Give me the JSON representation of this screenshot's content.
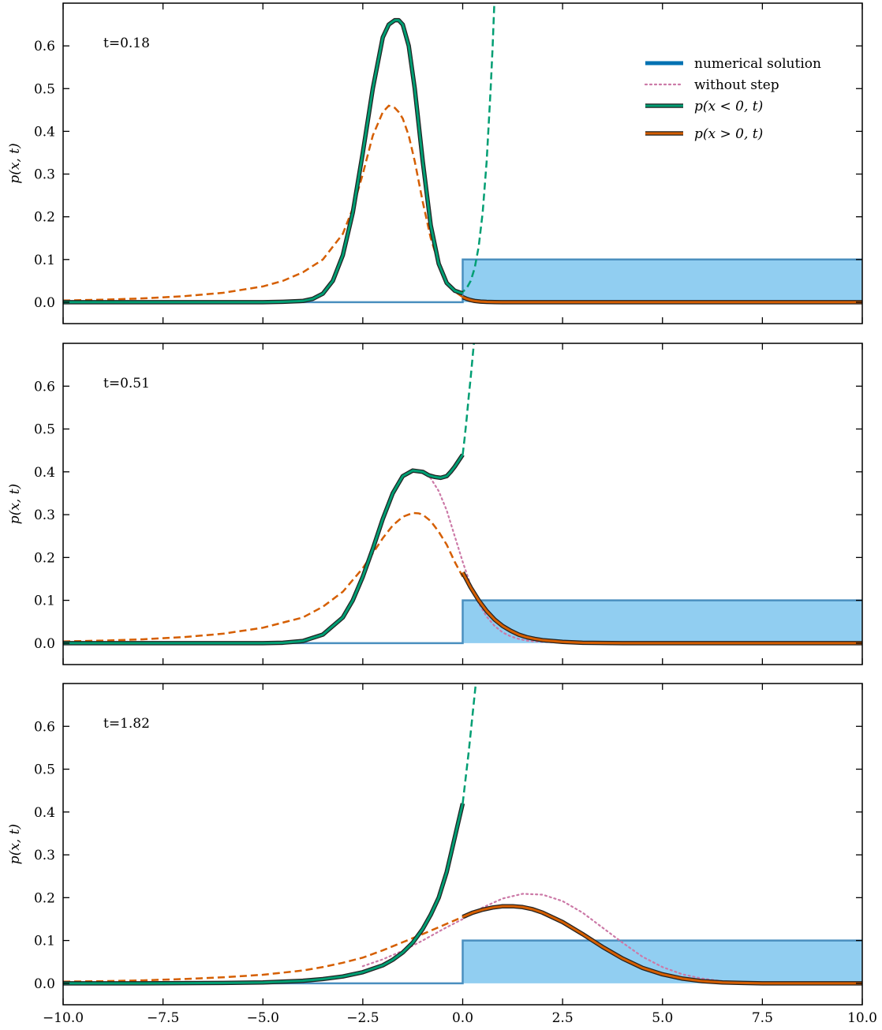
{
  "chart_data": {
    "type": "line",
    "x_range": [
      -10,
      10
    ],
    "y_range": [
      -0.05,
      0.7
    ],
    "x_ticks": [
      -10,
      -7.5,
      -5,
      -2.5,
      0,
      2.5,
      5,
      7.5,
      10
    ],
    "x_tick_labels": [
      "−10.0",
      "−7.5",
      "−5.0",
      "−2.5",
      "0.0",
      "2.5",
      "5.0",
      "7.5",
      "10.0"
    ],
    "y_ticks": [
      0.0,
      0.1,
      0.2,
      0.3,
      0.4,
      0.5,
      0.6
    ],
    "y_tick_labels": [
      "0.0",
      "0.1",
      "0.2",
      "0.3",
      "0.4",
      "0.5",
      "0.6"
    ],
    "ylabel": "p(x, t)",
    "grid": false,
    "legend": {
      "location": "top-right",
      "entries": [
        {
          "label": "numerical solution",
          "color": "#0072B2",
          "style": "solid-thick"
        },
        {
          "label": "without step",
          "color": "#CC79A7",
          "style": "dotted"
        },
        {
          "label": "p(x < 0, t)",
          "color": "#009E73",
          "style": "solid-outlined"
        },
        {
          "label": "p(x > 0, t)",
          "color": "#D55E00",
          "style": "solid-outlined"
        }
      ]
    },
    "colors": {
      "numerical": "#0072B2",
      "without_step": "#CC79A7",
      "p_left": "#009E73",
      "p_right": "#D55E00",
      "step_fill": "#56B4E9",
      "step_edge": "#4a8fbf"
    },
    "step_potential": {
      "x_start": 0,
      "x_end": 10,
      "height": 0.1
    },
    "panels": [
      {
        "annotation": "t=0.18",
        "series": [
          {
            "id": "p_left_solid",
            "x": [
              -10,
              -8,
              -6,
              -5,
              -4.5,
              -4,
              -3.75,
              -3.5,
              -3.25,
              -3,
              -2.75,
              -2.5,
              -2.25,
              -2,
              -1.85,
              -1.7,
              -1.6,
              -1.5,
              -1.35,
              -1.2,
              -1,
              -0.8,
              -0.6,
              -0.4,
              -0.2,
              -0.05,
              0
            ],
            "y": [
              0,
              0,
              0,
              0,
              0.001,
              0.003,
              0.008,
              0.02,
              0.05,
              0.11,
              0.21,
              0.35,
              0.5,
              0.62,
              0.65,
              0.66,
              0.66,
              0.65,
              0.6,
              0.5,
              0.33,
              0.18,
              0.09,
              0.045,
              0.027,
              0.022,
              0.021
            ]
          },
          {
            "id": "p_left_analytic",
            "x": [
              -0.1,
              0,
              0.1,
              0.2,
              0.3,
              0.4,
              0.5,
              0.6,
              0.7,
              0.75,
              0.8
            ],
            "y": [
              0.021,
              0.024,
              0.033,
              0.05,
              0.08,
              0.13,
              0.21,
              0.33,
              0.5,
              0.6,
              0.72
            ]
          },
          {
            "id": "p_right_dashed",
            "x": [
              -10,
              -9,
              -8,
              -7,
              -6,
              -5,
              -4.5,
              -4,
              -3.5,
              -3,
              -2.75,
              -2.5,
              -2.25,
              -2,
              -1.85,
              -1.7,
              -1.6,
              -1.5,
              -1.35,
              -1.2,
              -1,
              -0.8,
              -0.6,
              -0.4,
              -0.2,
              0
            ],
            "y": [
              0.004,
              0.006,
              0.009,
              0.014,
              0.022,
              0.037,
              0.05,
              0.07,
              0.1,
              0.16,
              0.22,
              0.3,
              0.39,
              0.445,
              0.46,
              0.455,
              0.445,
              0.43,
              0.39,
              0.33,
              0.235,
              0.15,
              0.09,
              0.05,
              0.025,
              0.012
            ]
          },
          {
            "id": "p_right_solid",
            "x": [
              0,
              0.1,
              0.2,
              0.3,
              0.45,
              0.6,
              0.8,
              1,
              1.5,
              2,
              3,
              5,
              7.5,
              10
            ],
            "y": [
              0.012,
              0.008,
              0.005,
              0.003,
              0.0015,
              0.0008,
              0.0003,
              0.0001,
              0,
              0,
              0,
              0,
              0,
              0
            ]
          }
        ]
      },
      {
        "annotation": "t=0.51",
        "series": [
          {
            "id": "p_left_solid",
            "x": [
              -10,
              -8,
              -6,
              -5,
              -4.5,
              -4,
              -3.5,
              -3,
              -2.75,
              -2.5,
              -2.25,
              -2,
              -1.75,
              -1.5,
              -1.25,
              -1,
              -0.85,
              -0.7,
              -0.55,
              -0.4,
              -0.3,
              -0.2,
              -0.1,
              0
            ],
            "y": [
              0,
              0,
              0,
              0,
              0.001,
              0.005,
              0.02,
              0.06,
              0.1,
              0.155,
              0.22,
              0.29,
              0.35,
              0.39,
              0.403,
              0.4,
              0.392,
              0.388,
              0.386,
              0.39,
              0.4,
              0.412,
              0.426,
              0.44
            ]
          },
          {
            "id": "p_left_analytic",
            "x": [
              0,
              0.05,
              0.1,
              0.15,
              0.2,
              0.25,
              0.3
            ],
            "y": [
              0.44,
              0.48,
              0.525,
              0.575,
              0.62,
              0.67,
              0.72
            ]
          },
          {
            "id": "without_step",
            "x": [
              -1,
              -0.8,
              -0.6,
              -0.4,
              -0.2,
              0,
              0.2,
              0.4,
              0.6,
              0.8,
              1,
              1.2,
              1.4,
              1.6,
              1.8,
              2,
              2.5,
              3,
              4,
              5,
              7.5,
              10
            ],
            "y": [
              0.4,
              0.385,
              0.355,
              0.31,
              0.25,
              0.19,
              0.135,
              0.093,
              0.062,
              0.04,
              0.025,
              0.016,
              0.01,
              0.006,
              0.004,
              0.003,
              0.001,
              0,
              0,
              0,
              0,
              0
            ]
          },
          {
            "id": "p_right_dashed",
            "x": [
              -10,
              -9,
              -8,
              -7,
              -6,
              -5,
              -4,
              -3.5,
              -3,
              -2.5,
              -2.25,
              -2,
              -1.75,
              -1.5,
              -1.25,
              -1.1,
              -1,
              -0.8,
              -0.6,
              -0.4,
              -0.2,
              0
            ],
            "y": [
              0.004,
              0.006,
              0.009,
              0.014,
              0.022,
              0.036,
              0.06,
              0.085,
              0.12,
              0.175,
              0.21,
              0.245,
              0.275,
              0.295,
              0.304,
              0.303,
              0.3,
              0.285,
              0.26,
              0.23,
              0.19,
              0.155
            ]
          },
          {
            "id": "p_right_solid",
            "x": [
              0,
              0.2,
              0.4,
              0.6,
              0.8,
              1,
              1.2,
              1.4,
              1.6,
              1.8,
              2,
              2.5,
              3,
              4,
              5,
              7.5,
              10
            ],
            "y": [
              0.165,
              0.13,
              0.1,
              0.075,
              0.055,
              0.04,
              0.029,
              0.02,
              0.014,
              0.01,
              0.007,
              0.003,
              0.001,
              0,
              0,
              0,
              0
            ]
          }
        ]
      },
      {
        "annotation": "t=1.82",
        "series": [
          {
            "id": "p_left_solid",
            "x": [
              -10,
              -8,
              -6,
              -5,
              -4,
              -3.5,
              -3,
              -2.5,
              -2,
              -1.75,
              -1.5,
              -1.25,
              -1,
              -0.8,
              -0.6,
              -0.4,
              -0.3,
              -0.2,
              -0.1,
              0
            ],
            "y": [
              0,
              0,
              0.001,
              0.002,
              0.006,
              0.01,
              0.016,
              0.026,
              0.042,
              0.055,
              0.072,
              0.095,
              0.127,
              0.16,
              0.2,
              0.26,
              0.3,
              0.34,
              0.38,
              0.42
            ]
          },
          {
            "id": "p_left_analytic",
            "x": [
              0,
              0.05,
              0.1,
              0.15,
              0.2,
              0.25,
              0.3,
              0.35
            ],
            "y": [
              0.42,
              0.46,
              0.5,
              0.54,
              0.585,
              0.63,
              0.675,
              0.72
            ]
          },
          {
            "id": "without_step",
            "x": [
              -2.5,
              -2,
              -1.5,
              -1,
              -0.5,
              0,
              0.5,
              1,
              1.5,
              2,
              2.5,
              3,
              3.5,
              4,
              4.5,
              5,
              5.5,
              6,
              6.5,
              7,
              8,
              9,
              10
            ],
            "y": [
              0.04,
              0.056,
              0.076,
              0.1,
              0.126,
              0.15,
              0.177,
              0.198,
              0.209,
              0.207,
              0.192,
              0.165,
              0.13,
              0.095,
              0.062,
              0.038,
              0.021,
              0.011,
              0.005,
              0.002,
              0.0003,
              0,
              0
            ]
          },
          {
            "id": "p_right_dashed",
            "x": [
              -10,
              -9,
              -8,
              -7,
              -6,
              -5,
              -4,
              -3.5,
              -3,
              -2.5,
              -2,
              -1.5,
              -1,
              -0.5,
              0
            ],
            "y": [
              0.004,
              0.005,
              0.007,
              0.01,
              0.014,
              0.02,
              0.03,
              0.038,
              0.048,
              0.06,
              0.077,
              0.096,
              0.115,
              0.135,
              0.155
            ]
          },
          {
            "id": "p_right_solid",
            "x": [
              0,
              0.25,
              0.5,
              0.75,
              1,
              1.25,
              1.5,
              1.75,
              2,
              2.5,
              3,
              3.5,
              4,
              4.5,
              5,
              5.5,
              6,
              6.5,
              7,
              7.5,
              8,
              9,
              10
            ],
            "y": [
              0.155,
              0.165,
              0.172,
              0.177,
              0.18,
              0.18,
              0.178,
              0.173,
              0.165,
              0.143,
              0.115,
              0.085,
              0.058,
              0.036,
              0.021,
              0.011,
              0.005,
              0.002,
              0.001,
              0,
              0,
              0,
              0
            ]
          }
        ]
      }
    ]
  }
}
